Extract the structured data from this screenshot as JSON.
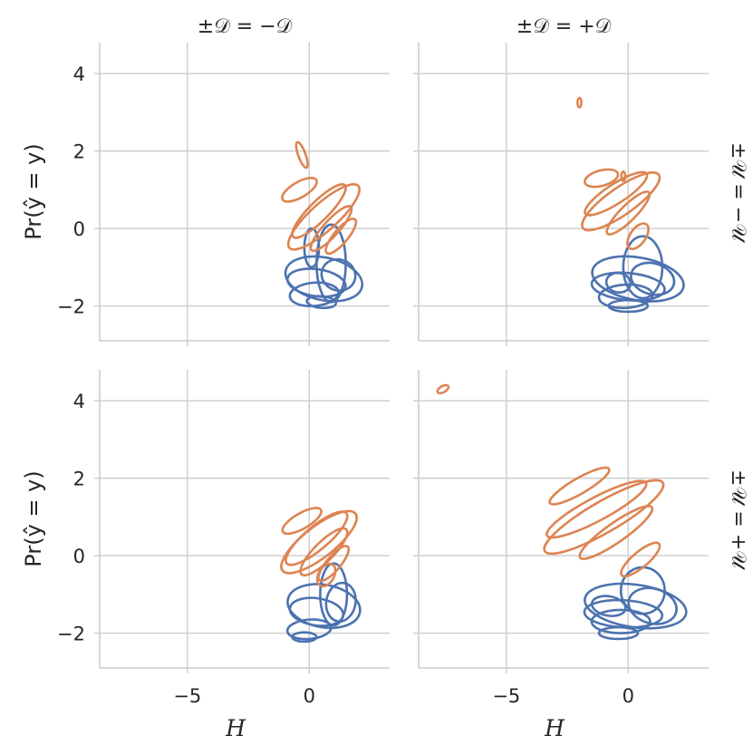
{
  "chart_data": {
    "type": "kde-contour",
    "layout": "2x2 facet grid",
    "xlabel": "H",
    "ylabel": "Pr(ŷ = y)",
    "xlim": [
      -8.6,
      3.3
    ],
    "ylim": [
      -2.9,
      4.8
    ],
    "xticks": [
      -5,
      0
    ],
    "xtick_labels": [
      "−5",
      "0"
    ],
    "yticks": [
      -2,
      0,
      2,
      4
    ],
    "ytick_labels": [
      "−2",
      "0",
      "2",
      "4"
    ],
    "grid": true,
    "col_titles": [
      "±𝒟 = −𝒟",
      "±𝒟 = +𝒟"
    ],
    "row_titles": [
      "±𝒰 = −𝒰",
      "±𝒰 = +𝒰"
    ],
    "series_colors": {
      "blue": "#4c72b0",
      "orange": "#dd8452"
    },
    "panels": [
      {
        "row": 0,
        "col": 0,
        "blue": [
          {
            "cx": 0.6,
            "cy": -1.3,
            "rx": 1.6,
            "ry": 0.55,
            "rot": 12
          },
          {
            "cx": 0.3,
            "cy": -1.4,
            "rx": 1.2,
            "ry": 0.35,
            "rot": 8
          },
          {
            "cx": 0.9,
            "cy": -0.9,
            "rx": 0.6,
            "ry": 1.0,
            "rot": 0
          },
          {
            "cx": 0.2,
            "cy": -1.7,
            "rx": 1.0,
            "ry": 0.3,
            "rot": -5
          },
          {
            "cx": 1.2,
            "cy": -1.2,
            "rx": 0.7,
            "ry": 0.4,
            "rot": 20
          },
          {
            "cx": 0.5,
            "cy": -1.9,
            "rx": 0.6,
            "ry": 0.15,
            "rot": 5
          },
          {
            "cx": 0.1,
            "cy": -0.5,
            "rx": 0.3,
            "ry": 0.5,
            "rot": 0
          }
        ],
        "orange": [
          {
            "cx": 0.6,
            "cy": 0.3,
            "rx": 1.9,
            "ry": 0.35,
            "rot": -42
          },
          {
            "cx": 0.4,
            "cy": 0.45,
            "rx": 1.5,
            "ry": 0.25,
            "rot": -45
          },
          {
            "cx": 0.9,
            "cy": 0.0,
            "rx": 1.2,
            "ry": 0.2,
            "rot": -48
          },
          {
            "cx": -0.4,
            "cy": 1.0,
            "rx": 0.8,
            "ry": 0.2,
            "rot": -30
          },
          {
            "cx": 1.3,
            "cy": -0.2,
            "rx": 0.9,
            "ry": 0.18,
            "rot": -50
          },
          {
            "cx": -0.3,
            "cy": 1.9,
            "rx": 0.15,
            "ry": 0.35,
            "rot": -20
          }
        ]
      },
      {
        "row": 0,
        "col": 1,
        "blue": [
          {
            "cx": 0.4,
            "cy": -1.3,
            "rx": 1.9,
            "ry": 0.55,
            "rot": 10
          },
          {
            "cx": 0.0,
            "cy": -1.5,
            "rx": 1.5,
            "ry": 0.35,
            "rot": 5
          },
          {
            "cx": 0.6,
            "cy": -1.0,
            "rx": 0.8,
            "ry": 0.8,
            "rot": 0
          },
          {
            "cx": -0.1,
            "cy": -1.75,
            "rx": 1.1,
            "ry": 0.3,
            "rot": -3
          },
          {
            "cx": 1.0,
            "cy": -1.3,
            "rx": 0.9,
            "ry": 0.4,
            "rot": 15
          },
          {
            "cx": 0.0,
            "cy": -2.0,
            "rx": 0.8,
            "ry": 0.15,
            "rot": 0
          },
          {
            "cx": -0.4,
            "cy": -1.4,
            "rx": 0.5,
            "ry": 0.25,
            "rot": 10
          }
        ],
        "orange": [
          {
            "cx": -0.3,
            "cy": 0.7,
            "rx": 1.9,
            "ry": 0.35,
            "rot": -35
          },
          {
            "cx": -0.5,
            "cy": 0.9,
            "rx": 1.5,
            "ry": 0.25,
            "rot": -33
          },
          {
            "cx": 0.0,
            "cy": 0.4,
            "rx": 1.2,
            "ry": 0.2,
            "rot": -45
          },
          {
            "cx": -1.1,
            "cy": 1.3,
            "rx": 0.7,
            "ry": 0.2,
            "rot": -15
          },
          {
            "cx": 0.4,
            "cy": -0.2,
            "rx": 0.6,
            "ry": 0.2,
            "rot": -55
          },
          {
            "cx": -2.0,
            "cy": 3.25,
            "rx": 0.08,
            "ry": 0.12,
            "rot": 0
          },
          {
            "cx": -0.2,
            "cy": 1.35,
            "rx": 0.08,
            "ry": 0.12,
            "rot": 0
          }
        ]
      },
      {
        "row": 1,
        "col": 0,
        "blue": [
          {
            "cx": 0.6,
            "cy": -1.3,
            "rx": 1.5,
            "ry": 0.55,
            "rot": 10
          },
          {
            "cx": 0.3,
            "cy": -1.45,
            "rx": 1.1,
            "ry": 0.35,
            "rot": 8
          },
          {
            "cx": 1.0,
            "cy": -1.0,
            "rx": 0.55,
            "ry": 0.8,
            "rot": 0
          },
          {
            "cx": 0.0,
            "cy": -1.9,
            "rx": 0.9,
            "ry": 0.25,
            "rot": -5
          },
          {
            "cx": 1.3,
            "cy": -1.2,
            "rx": 0.6,
            "ry": 0.5,
            "rot": 10
          },
          {
            "cx": -0.2,
            "cy": -2.1,
            "rx": 0.5,
            "ry": 0.12,
            "rot": 0
          }
        ],
        "orange": [
          {
            "cx": 0.4,
            "cy": 0.35,
            "rx": 1.9,
            "ry": 0.4,
            "rot": -38
          },
          {
            "cx": 0.3,
            "cy": 0.45,
            "rx": 1.6,
            "ry": 0.3,
            "rot": -40
          },
          {
            "cx": 0.6,
            "cy": 0.1,
            "rx": 1.3,
            "ry": 0.25,
            "rot": -45
          },
          {
            "cx": -0.3,
            "cy": 0.9,
            "rx": 0.9,
            "ry": 0.2,
            "rot": -30
          },
          {
            "cx": 1.0,
            "cy": -0.2,
            "rx": 0.9,
            "ry": 0.18,
            "rot": -50
          },
          {
            "cx": 0.7,
            "cy": -0.5,
            "rx": 0.5,
            "ry": 0.2,
            "rot": -60
          }
        ]
      },
      {
        "row": 1,
        "col": 1,
        "blue": [
          {
            "cx": 0.3,
            "cy": -1.3,
            "rx": 2.1,
            "ry": 0.55,
            "rot": 8
          },
          {
            "cx": -0.2,
            "cy": -1.5,
            "rx": 1.6,
            "ry": 0.35,
            "rot": 3
          },
          {
            "cx": 0.6,
            "cy": -0.9,
            "rx": 0.9,
            "ry": 0.6,
            "rot": 0
          },
          {
            "cx": -0.3,
            "cy": -1.7,
            "rx": 1.2,
            "ry": 0.3,
            "rot": 0
          },
          {
            "cx": 1.0,
            "cy": -1.3,
            "rx": 1.0,
            "ry": 0.45,
            "rot": 15
          },
          {
            "cx": -0.4,
            "cy": -2.0,
            "rx": 0.8,
            "ry": 0.15,
            "rot": 0
          },
          {
            "cx": -0.8,
            "cy": -1.3,
            "rx": 0.7,
            "ry": 0.25,
            "rot": 10
          }
        ],
        "orange": [
          {
            "cx": -1.0,
            "cy": 1.0,
            "rx": 2.8,
            "ry": 0.4,
            "rot": -30
          },
          {
            "cx": -1.3,
            "cy": 1.2,
            "rx": 2.3,
            "ry": 0.3,
            "rot": -28
          },
          {
            "cx": -0.5,
            "cy": 0.6,
            "rx": 1.8,
            "ry": 0.25,
            "rot": -35
          },
          {
            "cx": -2.0,
            "cy": 1.8,
            "rx": 1.4,
            "ry": 0.2,
            "rot": -30
          },
          {
            "cx": 0.5,
            "cy": -0.1,
            "rx": 1.0,
            "ry": 0.2,
            "rot": -40
          },
          {
            "cx": -7.6,
            "cy": 4.3,
            "rx": 0.25,
            "ry": 0.08,
            "rot": -30
          }
        ]
      }
    ]
  }
}
